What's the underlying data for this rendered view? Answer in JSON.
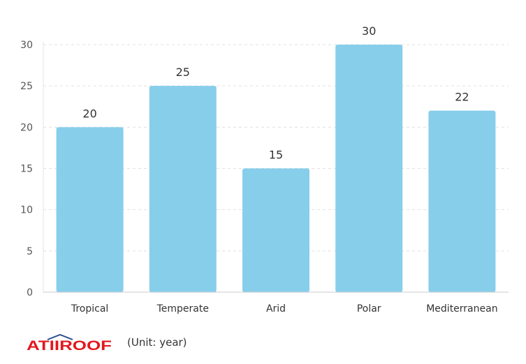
{
  "chart_data": {
    "type": "bar",
    "categories": [
      "Tropical",
      "Temperate",
      "Arid",
      "Polar",
      "Mediterranean"
    ],
    "values": [
      20,
      25,
      15,
      30,
      22
    ],
    "title": "",
    "xlabel": "",
    "ylabel": "",
    "ylim": [
      0,
      30
    ],
    "yticks": [
      0,
      5,
      10,
      15,
      20,
      25,
      30
    ],
    "grid": true,
    "data_labels": true,
    "bar_color": "#87CEEB"
  },
  "footer": {
    "logo_text": "ATIIROOF",
    "logo_color": "#E3171E",
    "unit_text": "(Unit: year)"
  }
}
